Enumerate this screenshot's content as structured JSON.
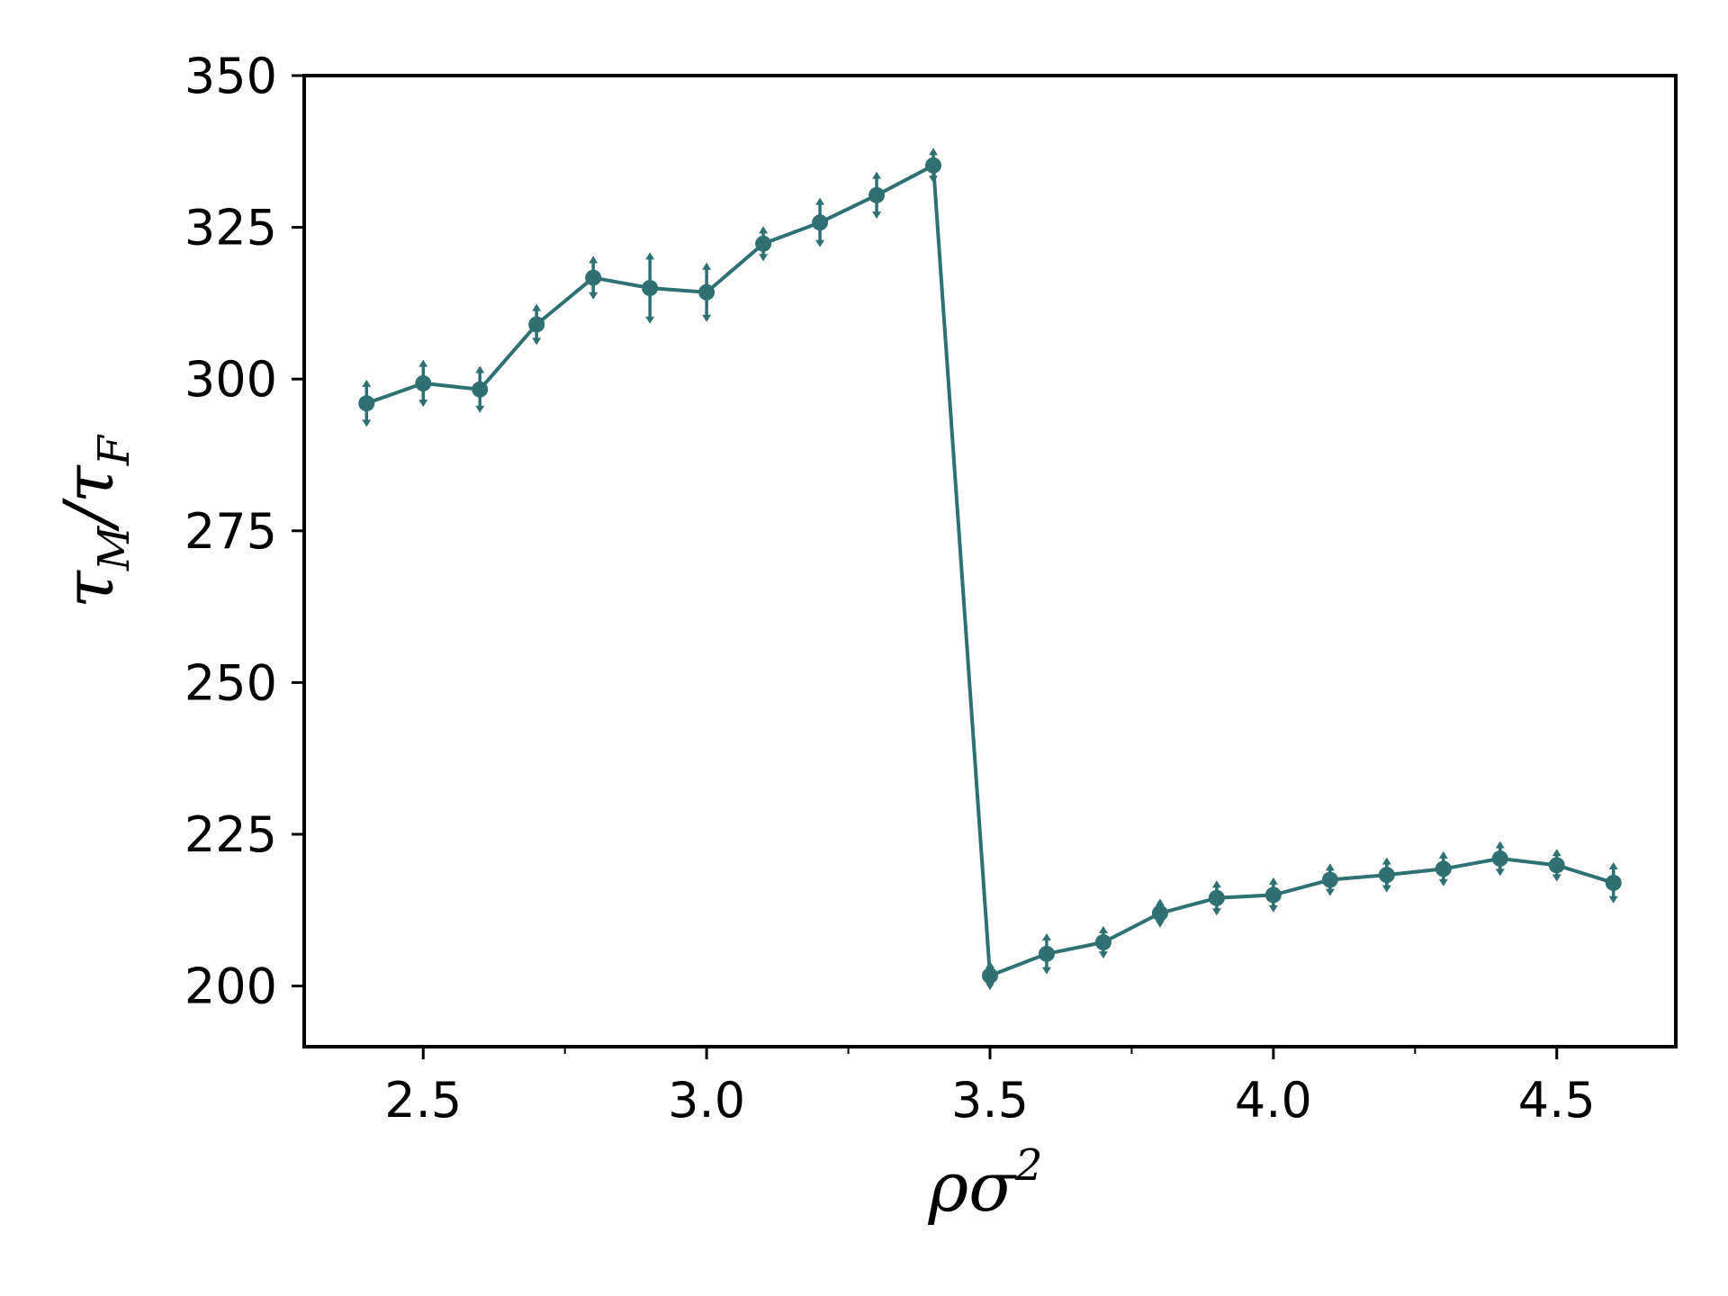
{
  "chart_data": {
    "type": "line",
    "title": "",
    "xlabel": "ρσ²",
    "ylabel": "τM/τF",
    "xlabel_parts": {
      "base": "ρσ",
      "sup": "2"
    },
    "ylabel_parts": {
      "a": "τ",
      "a_sub": "M",
      "sep": "/",
      "b": "τ",
      "b_sub": "F"
    },
    "xlim": [
      2.29,
      4.71
    ],
    "ylim": [
      190,
      350
    ],
    "x_ticks": [
      2.5,
      3.0,
      3.5,
      4.0,
      4.5
    ],
    "x_tick_labels": [
      "2.5",
      "3.0",
      "3.5",
      "4.0",
      "4.5"
    ],
    "x_minor_ticks": [
      2.75,
      3.25,
      3.75,
      4.25
    ],
    "y_ticks": [
      200,
      225,
      250,
      275,
      300,
      325,
      350
    ],
    "y_tick_labels": [
      "200",
      "225",
      "250",
      "275",
      "300",
      "325",
      "350"
    ],
    "grid": false,
    "legend": "none",
    "series": [
      {
        "color": "#2e7073",
        "x": [
          2.4,
          2.5,
          2.6,
          2.7,
          2.8,
          2.9,
          3.0,
          3.1,
          3.2,
          3.3,
          3.4,
          3.5,
          3.6,
          3.7,
          3.8,
          3.9,
          4.0,
          4.1,
          4.2,
          4.3,
          4.4,
          4.5,
          4.6
        ],
        "y": [
          296,
          299.3,
          298.3,
          309,
          316.7,
          315,
          314.3,
          322.3,
          325.8,
          330.3,
          335.2,
          201.7,
          205.3,
          207.2,
          212,
          214.5,
          215,
          217.5,
          218.3,
          219.3,
          221,
          219.9,
          217
        ],
        "yerr": [
          3,
          3,
          3,
          2.5,
          2.7,
          5,
          4,
          2,
          3.2,
          3,
          2,
          1.5,
          2.5,
          1.8,
          1.5,
          2,
          2,
          1.8,
          2,
          2,
          2,
          1.8,
          2.5
        ]
      }
    ]
  }
}
